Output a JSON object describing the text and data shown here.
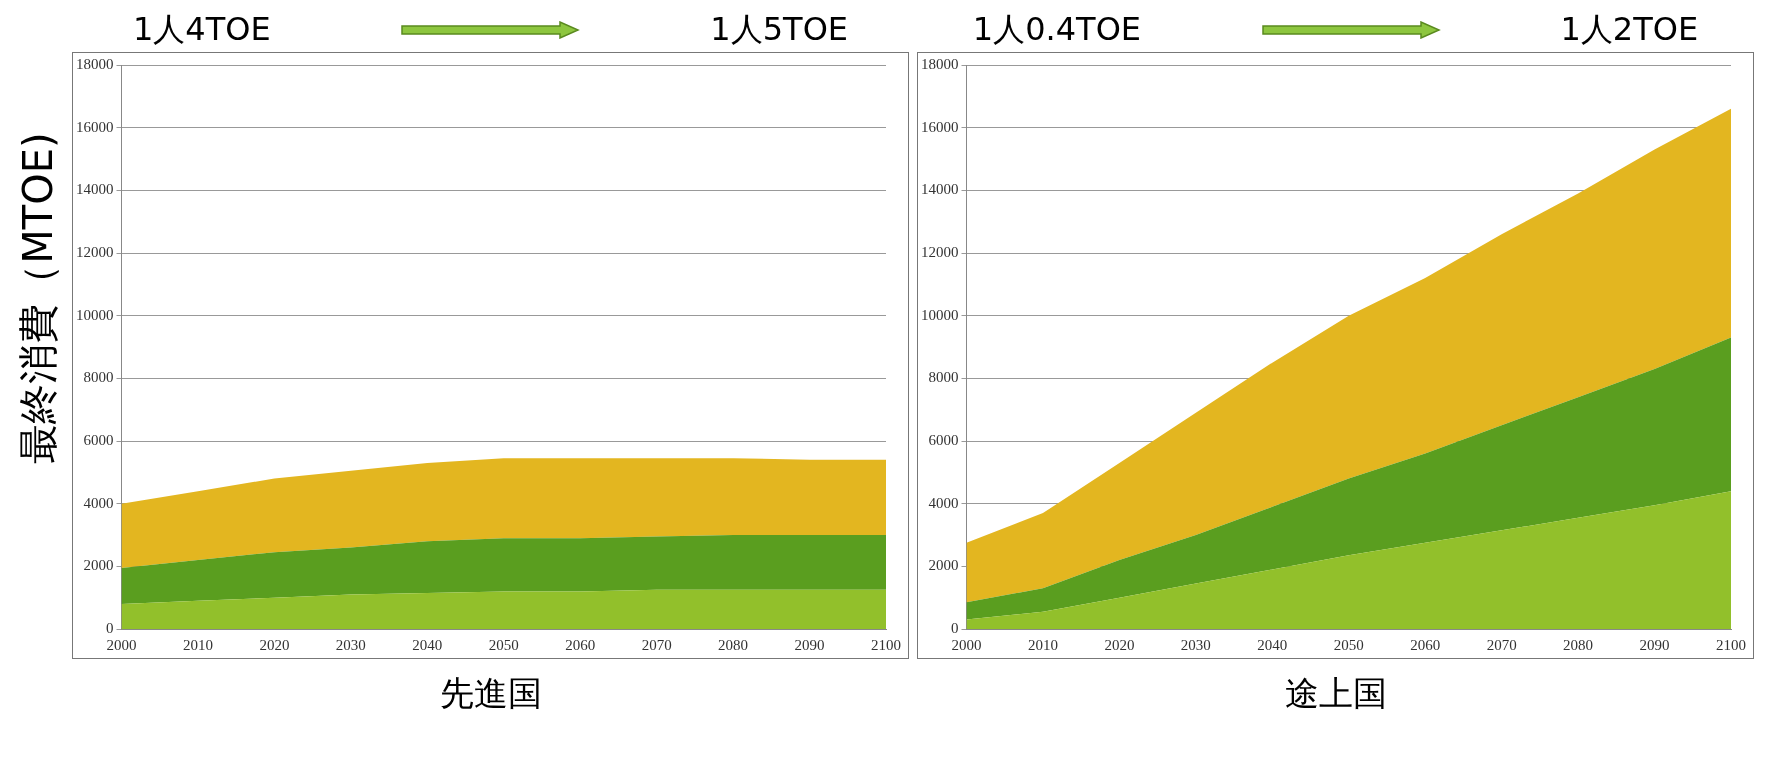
{
  "chart_data": [
    {
      "type": "area",
      "stacked": true,
      "ylabel": "最終消費（MTOE)",
      "xlabel": "先進国",
      "annotations": [
        "1人4TOE",
        "1人5TOE"
      ],
      "x": [
        2000,
        2010,
        2020,
        2030,
        2040,
        2050,
        2060,
        2070,
        2080,
        2090,
        2100
      ],
      "xlim": [
        2000,
        2100
      ],
      "xticks": [
        2000,
        2010,
        2020,
        2030,
        2040,
        2050,
        2060,
        2070,
        2080,
        2090,
        2100
      ],
      "ylim": [
        0,
        18000
      ],
      "yticks": [
        0,
        2000,
        4000,
        6000,
        8000,
        10000,
        12000,
        14000,
        16000,
        18000
      ],
      "grid": "y",
      "legend": false,
      "series": [
        {
          "color": "#92c02b",
          "values": [
            800,
            900,
            1000,
            1100,
            1150,
            1200,
            1200,
            1250,
            1250,
            1250,
            1250
          ]
        },
        {
          "color": "#5a9e1f",
          "values": [
            1150,
            1300,
            1450,
            1500,
            1650,
            1700,
            1700,
            1700,
            1750,
            1750,
            1750
          ]
        },
        {
          "color": "#e3b620",
          "values": [
            2050,
            2200,
            2350,
            2450,
            2500,
            2550,
            2550,
            2500,
            2450,
            2400,
            2400
          ]
        }
      ]
    },
    {
      "type": "area",
      "stacked": true,
      "xlabel": "途上国",
      "annotations": [
        "1人0.4TOE",
        "1人2TOE"
      ],
      "x": [
        2000,
        2010,
        2020,
        2030,
        2040,
        2050,
        2060,
        2070,
        2080,
        2090,
        2100
      ],
      "xlim": [
        2000,
        2100
      ],
      "xticks": [
        2000,
        2010,
        2020,
        2030,
        2040,
        2050,
        2060,
        2070,
        2080,
        2090,
        2100
      ],
      "ylim": [
        0,
        18000
      ],
      "yticks": [
        0,
        2000,
        4000,
        6000,
        8000,
        10000,
        12000,
        14000,
        16000,
        18000
      ],
      "grid": "y",
      "legend": false,
      "series": [
        {
          "color": "#92c02b",
          "values": [
            300,
            550,
            1000,
            1450,
            1900,
            2350,
            2750,
            3150,
            3550,
            3950,
            4400
          ]
        },
        {
          "color": "#5a9e1f",
          "values": [
            550,
            750,
            1200,
            1550,
            2000,
            2450,
            2850,
            3350,
            3850,
            4350,
            4900
          ]
        },
        {
          "color": "#e3b620",
          "values": [
            1900,
            2400,
            3100,
            3900,
            4600,
            5200,
            5600,
            6100,
            6500,
            7000,
            7300
          ]
        }
      ]
    }
  ]
}
